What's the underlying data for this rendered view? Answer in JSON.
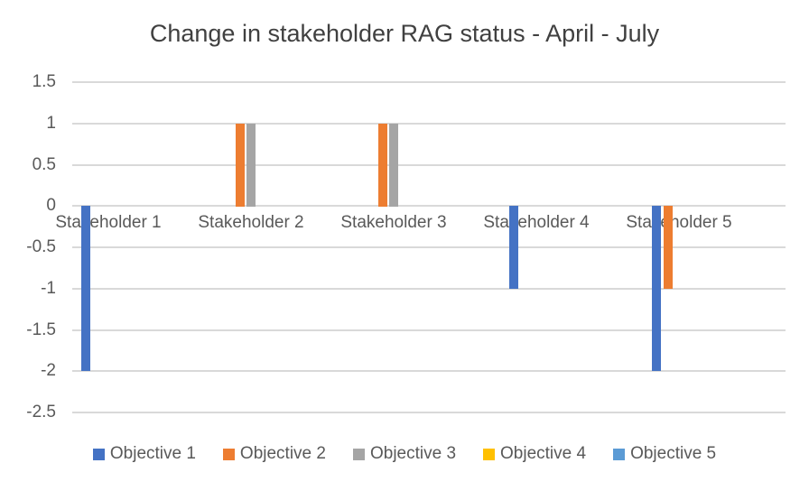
{
  "page": {
    "background": "#ffffff"
  },
  "chart_data": {
    "type": "bar",
    "title": "Change in stakeholder RAG status - April - July",
    "categories": [
      "Stakeholder 1",
      "Stakeholder 2",
      "Stakeholder 3",
      "Stakeholder 4",
      "Stakeholder 5"
    ],
    "series": [
      {
        "name": "Objective 1",
        "color": "#4472C4",
        "values": [
          -2,
          0,
          0,
          -1,
          -2
        ]
      },
      {
        "name": "Objective 2",
        "color": "#ED7D31",
        "values": [
          0,
          1,
          1,
          0,
          -1
        ]
      },
      {
        "name": "Objective 3",
        "color": "#A5A5A5",
        "values": [
          0,
          1,
          1,
          0,
          0
        ]
      },
      {
        "name": "Objective 4",
        "color": "#FFC000",
        "values": [
          0,
          0,
          0,
          0,
          0
        ]
      },
      {
        "name": "Objective 5",
        "color": "#5B9BD5",
        "values": [
          0,
          0,
          0,
          0,
          0
        ]
      }
    ],
    "xlabel": "",
    "ylabel": "",
    "ylim": [
      -2.5,
      1.5
    ],
    "y_step": 0.5,
    "y_tick_labels": [
      "1.5",
      "1",
      "0.5",
      "0",
      "-0.5",
      "-1",
      "-1.5",
      "-2",
      "-2.5"
    ],
    "grid": true,
    "legend_position": "bottom",
    "colors": {
      "gridline": "#d9d9d9",
      "title_text": "#404040",
      "axis_text": "#595959",
      "background": "#ffffff"
    }
  }
}
